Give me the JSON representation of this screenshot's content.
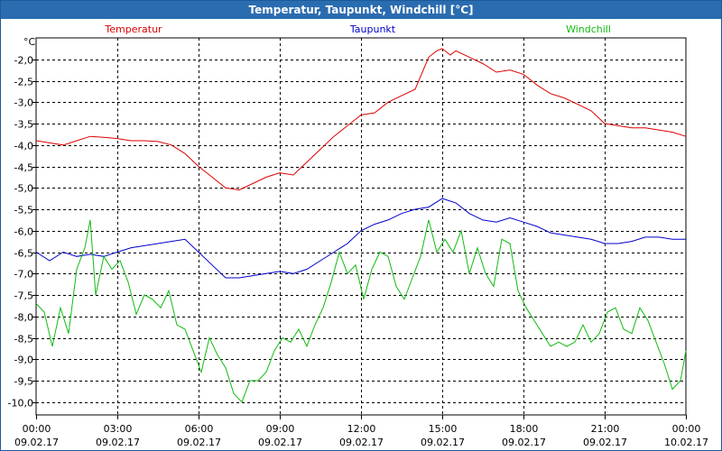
{
  "window": {
    "title": "Temperatur, Taupunkt, Windchill [°C]"
  },
  "chart_data": {
    "type": "line",
    "title": "Temperatur, Taupunkt, Windchill [°C]",
    "ylabel": "°C",
    "grid": true,
    "ylim": [
      -10.3,
      -1.5
    ],
    "yticks": [
      "-2,0",
      "-2,5",
      "-3,0",
      "-3,5",
      "-4,0",
      "-4,5",
      "-5,0",
      "-5,5",
      "-6,0",
      "-6,5",
      "-7,0",
      "-7,5",
      "-8,0",
      "-8,5",
      "-9,0",
      "-9,5",
      "-10,0"
    ],
    "ytick_values": [
      -2.0,
      -2.5,
      -3.0,
      -3.5,
      -4.0,
      -4.5,
      -5.0,
      -5.5,
      -6.0,
      -6.5,
      -7.0,
      -7.5,
      -8.0,
      -8.5,
      -9.0,
      -9.5,
      -10.0
    ],
    "xlim": [
      0,
      24
    ],
    "xticks": [
      {
        "value": 0,
        "time": "00:00",
        "date": "09.02.17"
      },
      {
        "value": 3,
        "time": "03:00",
        "date": "09.02.17"
      },
      {
        "value": 6,
        "time": "06:00",
        "date": "09.02.17"
      },
      {
        "value": 9,
        "time": "09:00",
        "date": "09.02.17"
      },
      {
        "value": 12,
        "time": "12:00",
        "date": "09.02.17"
      },
      {
        "value": 15,
        "time": "15:00",
        "date": "09.02.17"
      },
      {
        "value": 18,
        "time": "18:00",
        "date": "09.02.17"
      },
      {
        "value": 21,
        "time": "21:00",
        "date": "09.02.17"
      },
      {
        "value": 24,
        "time": "00:00",
        "date": "10.02.17"
      }
    ],
    "series": [
      {
        "name": "Temperatur",
        "color": "#dd0000",
        "x": [
          0,
          0.5,
          1,
          1.5,
          2,
          2.5,
          3,
          3.5,
          4,
          4.5,
          5,
          5.5,
          6,
          6.5,
          7,
          7.5,
          8,
          8.5,
          9,
          9.5,
          10,
          10.5,
          11,
          11.5,
          12,
          12.5,
          13,
          13.5,
          14,
          14.5,
          14.8,
          15,
          15.3,
          15.5,
          16,
          16.5,
          17,
          17.5,
          18,
          18.5,
          19,
          19.5,
          20,
          20.5,
          21,
          21.5,
          22,
          22.5,
          23,
          23.5,
          24
        ],
        "values": [
          -3.9,
          -3.95,
          -4.0,
          -3.9,
          -3.8,
          -3.82,
          -3.85,
          -3.9,
          -3.9,
          -3.92,
          -4.0,
          -4.2,
          -4.5,
          -4.75,
          -5.0,
          -5.05,
          -4.9,
          -4.75,
          -4.65,
          -4.7,
          -4.4,
          -4.1,
          -3.8,
          -3.55,
          -3.3,
          -3.25,
          -3.0,
          -2.85,
          -2.7,
          -1.95,
          -1.8,
          -1.75,
          -1.9,
          -1.8,
          -1.95,
          -2.1,
          -2.3,
          -2.25,
          -2.35,
          -2.6,
          -2.8,
          -2.9,
          -3.05,
          -3.2,
          -3.5,
          -3.55,
          -3.6,
          -3.6,
          -3.65,
          -3.7,
          -3.8
        ]
      },
      {
        "name": "Taupunkt",
        "color": "#0000cc",
        "x": [
          0,
          0.5,
          1,
          1.5,
          2,
          2.5,
          3,
          3.5,
          4,
          4.5,
          5,
          5.5,
          6,
          6.5,
          7,
          7.5,
          8,
          8.5,
          9,
          9.5,
          10,
          10.5,
          11,
          11.5,
          12,
          12.5,
          13,
          13.5,
          14,
          14.5,
          15,
          15.5,
          16,
          16.5,
          17,
          17.5,
          18,
          18.5,
          19,
          19.5,
          20,
          20.5,
          21,
          21.5,
          22,
          22.5,
          23,
          23.5,
          24
        ],
        "values": [
          -6.5,
          -6.7,
          -6.5,
          -6.6,
          -6.55,
          -6.6,
          -6.5,
          -6.4,
          -6.35,
          -6.3,
          -6.25,
          -6.2,
          -6.5,
          -6.8,
          -7.1,
          -7.1,
          -7.05,
          -7.0,
          -6.95,
          -7.0,
          -6.9,
          -6.7,
          -6.5,
          -6.3,
          -6.0,
          -5.85,
          -5.75,
          -5.6,
          -5.5,
          -5.45,
          -5.25,
          -5.35,
          -5.6,
          -5.75,
          -5.8,
          -5.7,
          -5.8,
          -5.9,
          -6.05,
          -6.1,
          -6.15,
          -6.2,
          -6.3,
          -6.3,
          -6.25,
          -6.15,
          -6.15,
          -6.2,
          -6.2
        ]
      },
      {
        "name": "Windchill",
        "color": "#11bb11",
        "x": [
          0,
          0.3,
          0.6,
          0.9,
          1.2,
          1.5,
          1.8,
          2.0,
          2.2,
          2.5,
          2.8,
          3.1,
          3.4,
          3.7,
          4.0,
          4.3,
          4.6,
          4.9,
          5.2,
          5.5,
          5.8,
          6.1,
          6.4,
          6.7,
          7.0,
          7.3,
          7.6,
          7.9,
          8.2,
          8.5,
          8.8,
          9.1,
          9.4,
          9.7,
          10.0,
          10.3,
          10.6,
          10.9,
          11.2,
          11.5,
          11.8,
          12.1,
          12.4,
          12.7,
          13.0,
          13.3,
          13.6,
          13.9,
          14.2,
          14.5,
          14.8,
          15.1,
          15.4,
          15.7,
          16.0,
          16.3,
          16.6,
          16.9,
          17.2,
          17.5,
          17.8,
          18.1,
          18.4,
          18.7,
          19.0,
          19.3,
          19.6,
          19.9,
          20.2,
          20.5,
          20.8,
          21.1,
          21.4,
          21.7,
          22.0,
          22.3,
          22.6,
          22.9,
          23.2,
          23.5,
          23.8,
          24.0
        ],
        "values": [
          -7.7,
          -7.9,
          -8.7,
          -7.8,
          -8.4,
          -6.9,
          -6.4,
          -5.75,
          -7.5,
          -6.6,
          -6.9,
          -6.7,
          -7.2,
          -7.95,
          -7.5,
          -7.6,
          -7.8,
          -7.4,
          -8.2,
          -8.3,
          -8.8,
          -9.3,
          -8.5,
          -8.9,
          -9.2,
          -9.8,
          -10.0,
          -9.5,
          -9.5,
          -9.3,
          -8.8,
          -8.5,
          -8.6,
          -8.3,
          -8.7,
          -8.2,
          -7.8,
          -7.2,
          -6.5,
          -7.0,
          -6.8,
          -7.6,
          -6.9,
          -6.5,
          -6.6,
          -7.3,
          -7.6,
          -7.1,
          -6.6,
          -5.75,
          -6.5,
          -6.2,
          -6.5,
          -6.0,
          -7.0,
          -6.4,
          -7.0,
          -7.3,
          -6.2,
          -6.3,
          -7.4,
          -7.8,
          -8.1,
          -8.4,
          -8.7,
          -8.6,
          -8.7,
          -8.6,
          -8.2,
          -8.6,
          -8.4,
          -7.9,
          -7.8,
          -8.3,
          -8.4,
          -7.8,
          -8.1,
          -8.6,
          -9.1,
          -9.7,
          -9.5,
          -8.8
        ]
      }
    ]
  }
}
